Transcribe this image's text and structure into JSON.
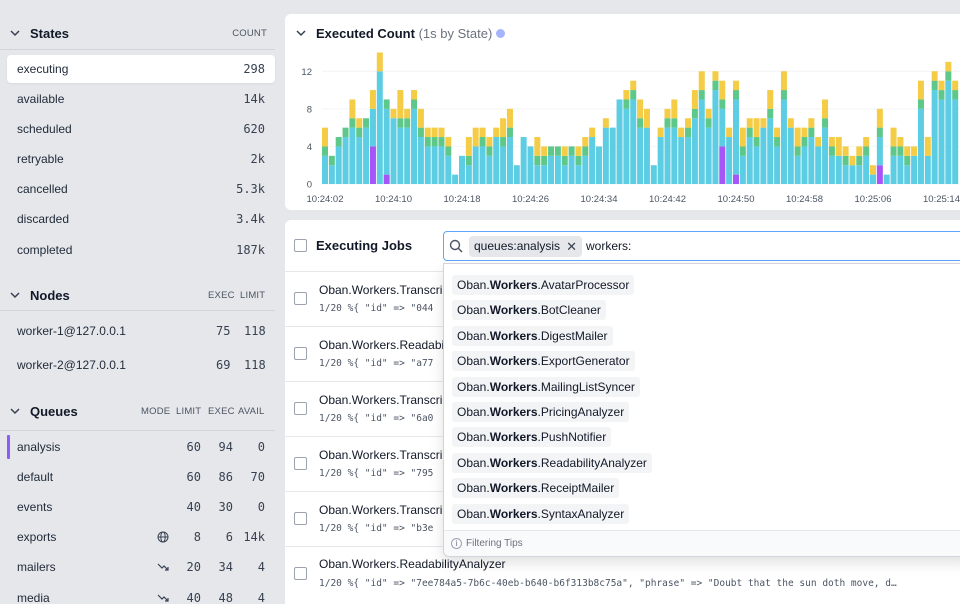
{
  "colors": {
    "executing": "#5ccde3",
    "available": "#f4cc45",
    "scheduled": "#5dc88a",
    "retryable": "#a855f7",
    "queue_accent": "#8b5cf6",
    "search_border": "#60a5fa"
  },
  "states": {
    "title": "States",
    "col_count": "COUNT",
    "items": [
      {
        "label": "executing",
        "count": "298"
      },
      {
        "label": "available",
        "count": "14k"
      },
      {
        "label": "scheduled",
        "count": "620"
      },
      {
        "label": "retryable",
        "count": "2k"
      },
      {
        "label": "cancelled",
        "count": "5.3k"
      },
      {
        "label": "discarded",
        "count": "3.4k"
      },
      {
        "label": "completed",
        "count": "187k"
      }
    ]
  },
  "nodes": {
    "title": "Nodes",
    "col_exec": "EXEC",
    "col_limit": "LIMIT",
    "items": [
      {
        "name": "worker-1@127.0.0.1",
        "exec": "75",
        "limit": "118"
      },
      {
        "name": "worker-2@127.0.0.1",
        "exec": "69",
        "limit": "118"
      }
    ]
  },
  "queues": {
    "title": "Queues",
    "col_mode": "MODE",
    "col_limit": "LIMIT",
    "col_exec": "EXEC",
    "col_avail": "AVAIL",
    "items": [
      {
        "name": "analysis",
        "mode_icon": "",
        "limit": "60",
        "exec": "94",
        "avail": "0"
      },
      {
        "name": "default",
        "mode_icon": "",
        "limit": "60",
        "exec": "86",
        "avail": "70"
      },
      {
        "name": "events",
        "mode_icon": "",
        "limit": "40",
        "exec": "30",
        "avail": "0"
      },
      {
        "name": "exports",
        "mode_icon": "globe-icon",
        "limit": "8",
        "exec": "6",
        "avail": "14k"
      },
      {
        "name": "mailers",
        "mode_icon": "rate-limit-icon",
        "limit": "20",
        "exec": "34",
        "avail": "4"
      },
      {
        "name": "media",
        "mode_icon": "rate-limit-icon",
        "limit": "40",
        "exec": "48",
        "avail": "4"
      }
    ]
  },
  "chart": {
    "title": "Executed Count",
    "subtitle": "(1s by State)"
  },
  "chart_data": {
    "type": "bar",
    "stacked": true,
    "title": "Executed Count",
    "subtitle": "(1s by State)",
    "ylim": [
      0,
      14
    ],
    "y_ticks": [
      "0",
      "4",
      "8",
      "12"
    ],
    "x_ticks": [
      "10:24:02",
      "10:24:10",
      "10:24:18",
      "10:24:26",
      "10:24:34",
      "10:24:42",
      "10:24:50",
      "10:24:58",
      "10:25:06",
      "10:25:14"
    ],
    "series": [
      {
        "name": "executing",
        "values": [
          3,
          2,
          4,
          5,
          6,
          5,
          6,
          4,
          12,
          7,
          7,
          6,
          6,
          8,
          5,
          4,
          4,
          4,
          3,
          1,
          3,
          2,
          4,
          4,
          3,
          5,
          4,
          5,
          2,
          5,
          4,
          2,
          2,
          3,
          3,
          2,
          3,
          2,
          3,
          5,
          4,
          6,
          6,
          9,
          8,
          9,
          6,
          6,
          2,
          5,
          6,
          6,
          5,
          5,
          7,
          9,
          6,
          10,
          4,
          5,
          8,
          3,
          5,
          4,
          6,
          7,
          4,
          9,
          6,
          3,
          4,
          5,
          4,
          6,
          3,
          3,
          2,
          2,
          2,
          3,
          1,
          3,
          1,
          3,
          3,
          2,
          3,
          8,
          3,
          10,
          9,
          11,
          9
        ]
      },
      {
        "name": "available",
        "values": [
          2,
          0,
          0,
          0,
          2,
          1,
          0,
          2,
          2,
          0,
          1,
          3,
          1,
          1,
          2,
          1,
          1,
          1,
          1,
          0,
          0,
          2,
          2,
          1,
          1,
          1,
          2,
          2,
          0,
          0,
          0,
          2,
          1,
          0,
          0,
          1,
          0,
          1,
          1,
          1,
          0,
          1,
          0,
          0,
          1,
          1,
          2,
          2,
          0,
          1,
          1,
          2,
          1,
          1,
          2,
          2,
          1,
          1,
          2,
          1,
          1,
          2,
          1,
          2,
          1,
          2,
          1,
          2,
          1,
          2,
          1,
          1,
          1,
          2,
          1,
          2,
          1,
          1,
          1,
          1,
          1,
          2,
          0,
          2,
          1,
          1,
          1,
          2,
          2,
          1,
          1,
          1,
          1
        ]
      },
      {
        "name": "scheduled",
        "values": [
          1,
          1,
          1,
          1,
          1,
          1,
          1,
          0,
          0,
          1,
          0,
          1,
          1,
          1,
          1,
          1,
          1,
          1,
          1,
          0,
          0,
          1,
          0,
          1,
          1,
          0,
          1,
          1,
          0,
          0,
          0,
          1,
          1,
          1,
          1,
          1,
          1,
          1,
          1,
          0,
          0,
          0,
          0,
          0,
          1,
          1,
          1,
          0,
          0,
          0,
          1,
          1,
          0,
          1,
          1,
          1,
          1,
          1,
          1,
          0,
          1,
          1,
          1,
          1,
          0,
          1,
          1,
          1,
          0,
          1,
          1,
          1,
          0,
          1,
          1,
          0,
          1,
          0,
          1,
          1,
          0,
          1,
          0,
          1,
          1,
          1,
          0,
          1,
          0,
          1,
          1,
          1,
          1
        ]
      },
      {
        "name": "retryable",
        "values": [
          0,
          0,
          0,
          0,
          0,
          0,
          0,
          4,
          0,
          1,
          0,
          0,
          0,
          0,
          0,
          0,
          0,
          0,
          0,
          0,
          0,
          0,
          0,
          0,
          0,
          0,
          0,
          0,
          0,
          0,
          0,
          0,
          0,
          0,
          0,
          0,
          0,
          0,
          0,
          0,
          0,
          0,
          0,
          0,
          0,
          0,
          0,
          0,
          0,
          0,
          0,
          0,
          0,
          0,
          0,
          0,
          0,
          0,
          4,
          0,
          1,
          0,
          0,
          0,
          0,
          0,
          0,
          0,
          0,
          0,
          0,
          0,
          0,
          0,
          0,
          0,
          0,
          0,
          0,
          0,
          0,
          2,
          0,
          0,
          0,
          0,
          0,
          0,
          0,
          0,
          0,
          0,
          0
        ]
      }
    ]
  },
  "jobs": {
    "title": "Executing Jobs",
    "rows": [
      {
        "worker": "Oban.Workers.Transcri",
        "args": "1/20  %{ \"id\" => \"044"
      },
      {
        "worker": "Oban.Workers.Readabi",
        "args": "1/20  %{ \"id\" => \"a77"
      },
      {
        "worker": "Oban.Workers.Transcri",
        "args": "1/20  %{ \"id\" => \"6a0"
      },
      {
        "worker": "Oban.Workers.Transcri",
        "args": "1/20  %{ \"id\" => \"795"
      },
      {
        "worker": "Oban.Workers.Transcri",
        "args": "1/20  %{ \"id\" => \"b3e"
      },
      {
        "worker": "Oban.Workers.ReadabilityAnalyzer",
        "args": "1/20  %{ \"id\" => \"7ee784a5-7b6c-40eb-b640-b6f313b8c75a\", \"phrase\" => \"Doubt that the sun doth move, d…"
      }
    ]
  },
  "search": {
    "chip": "queues:analysis",
    "query": "workers:",
    "suggestions": [
      {
        "prefix": "Oban.",
        "match": "Workers",
        "suffix": ".AvatarProcessor"
      },
      {
        "prefix": "Oban.",
        "match": "Workers",
        "suffix": ".BotCleaner"
      },
      {
        "prefix": "Oban.",
        "match": "Workers",
        "suffix": ".DigestMailer"
      },
      {
        "prefix": "Oban.",
        "match": "Workers",
        "suffix": ".ExportGenerator"
      },
      {
        "prefix": "Oban.",
        "match": "Workers",
        "suffix": ".MailingListSyncer"
      },
      {
        "prefix": "Oban.",
        "match": "Workers",
        "suffix": ".PricingAnalyzer"
      },
      {
        "prefix": "Oban.",
        "match": "Workers",
        "suffix": ".PushNotifier"
      },
      {
        "prefix": "Oban.",
        "match": "Workers",
        "suffix": ".ReadabilityAnalyzer"
      },
      {
        "prefix": "Oban.",
        "match": "Workers",
        "suffix": ".ReceiptMailer"
      },
      {
        "prefix": "Oban.",
        "match": "Workers",
        "suffix": ".SyntaxAnalyzer"
      }
    ],
    "tips": "Filtering Tips"
  }
}
